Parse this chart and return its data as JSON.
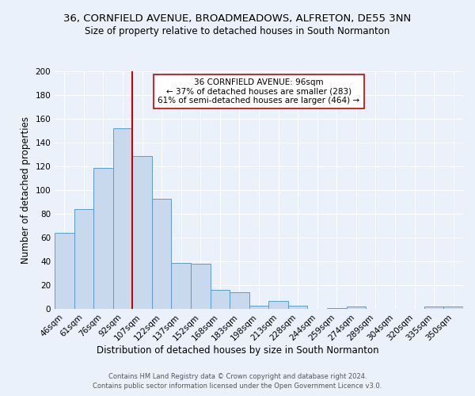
{
  "title": "36, CORNFIELD AVENUE, BROADMEADOWS, ALFRETON, DE55 3NN",
  "subtitle": "Size of property relative to detached houses in South Normanton",
  "xlabel": "Distribution of detached houses by size in South Normanton",
  "ylabel": "Number of detached properties",
  "bar_labels": [
    "46sqm",
    "61sqm",
    "76sqm",
    "92sqm",
    "107sqm",
    "122sqm",
    "137sqm",
    "152sqm",
    "168sqm",
    "183sqm",
    "198sqm",
    "213sqm",
    "228sqm",
    "244sqm",
    "259sqm",
    "274sqm",
    "289sqm",
    "304sqm",
    "320sqm",
    "335sqm",
    "350sqm"
  ],
  "bar_heights": [
    64,
    84,
    119,
    152,
    129,
    93,
    39,
    38,
    16,
    14,
    3,
    7,
    3,
    0,
    1,
    2,
    0,
    0,
    0,
    2,
    2
  ],
  "bar_color": "#c9d9ed",
  "bar_edge_color": "#5b9bd5",
  "bar_width": 1.0,
  "vline_x_index": 3,
  "vline_color": "#cc0000",
  "annotation_title": "36 CORNFIELD AVENUE: 96sqm",
  "annotation_line1": "← 37% of detached houses are smaller (283)",
  "annotation_line2": "61% of semi-detached houses are larger (464) →",
  "annotation_box_color": "#ffffff",
  "annotation_box_edge": "#cc0000",
  "ylim": [
    0,
    200
  ],
  "yticks": [
    0,
    20,
    40,
    60,
    80,
    100,
    120,
    140,
    160,
    180,
    200
  ],
  "footer1": "Contains HM Land Registry data © Crown copyright and database right 2024.",
  "footer2": "Contains public sector information licensed under the Open Government Licence v3.0.",
  "bg_color": "#eaf1fb",
  "plot_bg_color": "#eaf1fb",
  "grid_color": "#ffffff",
  "title_fontsize": 9.5,
  "subtitle_fontsize": 8.5,
  "xlabel_fontsize": 8.5,
  "ylabel_fontsize": 8.5,
  "tick_fontsize": 7.5,
  "footer_fontsize": 6.0
}
